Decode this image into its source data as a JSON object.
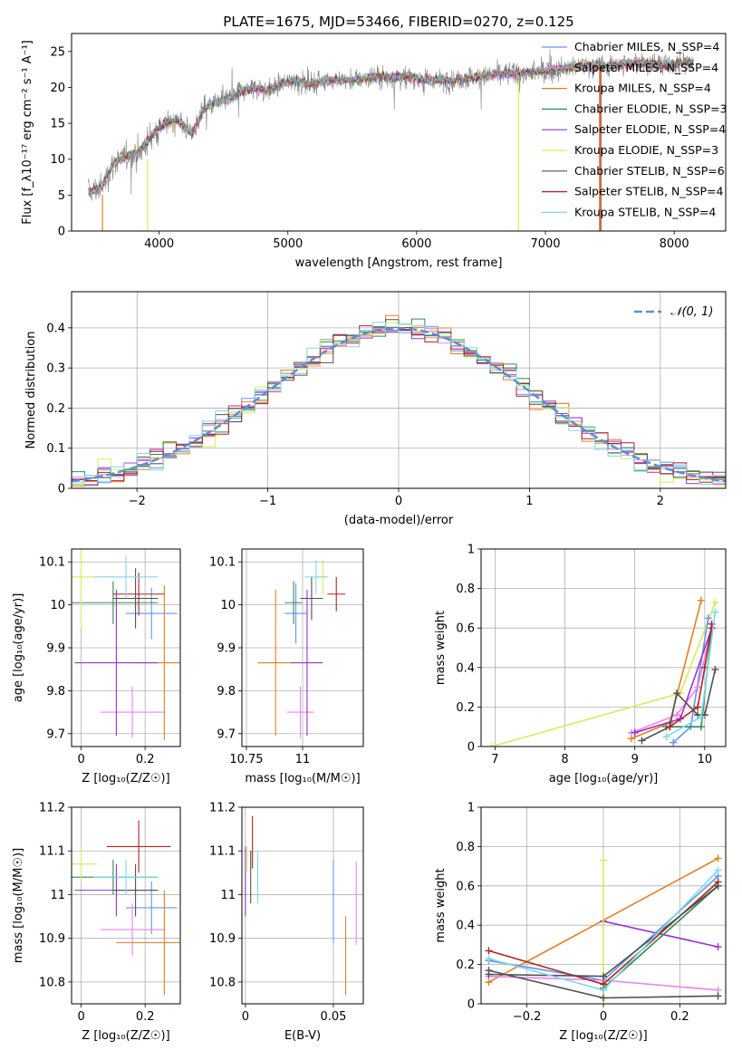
{
  "figure_title": "PLATE=1675, MJD=53466, FIBERID=0270, z=0.125",
  "colors": {
    "chabrier_miles": "#6495ed",
    "salpeter_miles": "#ee82ee",
    "kroupa_miles": "#e67e22",
    "chabrier_elodie": "#2e8b57",
    "salpeter_elodie": "#9932cc",
    "kroupa_elodie": "#d4ed5a",
    "chabrier_stelib": "#505050",
    "salpeter_stelib": "#b22222",
    "kroupa_stelib": "#80d8e8"
  },
  "chart_data": [
    {
      "id": "spectrum",
      "type": "line",
      "title": "PLATE=1675, MJD=53466, FIBERID=0270, z=0.125",
      "xlabel": "wavelength [Angstrom, rest frame]",
      "ylabel": "Flux [f_λ10⁻¹⁷ erg cm⁻² s⁻¹ A⁻¹]",
      "xlim": [
        3320,
        8400
      ],
      "ylim": [
        0,
        27.5
      ],
      "xticks": [
        4000,
        5000,
        6000,
        7000,
        8000
      ],
      "yticks": [
        0,
        5,
        10,
        15,
        20,
        25
      ],
      "legend_position": "upper right",
      "grid": false,
      "series": [
        {
          "name": "Chabrier MILES, N_SSP=4",
          "color_key": "chabrier_miles"
        },
        {
          "name": "Salpeter MILES, N_SSP=4",
          "color_key": "salpeter_miles"
        },
        {
          "name": "Kroupa MILES, N_SSP=4",
          "color_key": "kroupa_miles"
        },
        {
          "name": "Chabrier ELODIE, N_SSP=3",
          "color_key": "chabrier_elodie"
        },
        {
          "name": "Salpeter ELODIE, N_SSP=4",
          "color_key": "salpeter_elodie"
        },
        {
          "name": "Kroupa ELODIE, N_SSP=3",
          "color_key": "kroupa_elodie"
        },
        {
          "name": "Chabrier STELIB, N_SSP=6",
          "color_key": "chabrier_stelib"
        },
        {
          "name": "Salpeter STELIB, N_SSP=4",
          "color_key": "salpeter_stelib"
        },
        {
          "name": "Kroupa STELIB, N_SSP=4",
          "color_key": "kroupa_stelib"
        }
      ],
      "continuum_x": [
        3450,
        3550,
        3650,
        3750,
        3850,
        3950,
        4050,
        4150,
        4250,
        4350,
        4450,
        4550,
        4650,
        4750,
        4850,
        4950,
        5050,
        5150,
        5300,
        5500,
        5700,
        5900,
        6100,
        6300,
        6500,
        6700,
        6900,
        7100,
        7300,
        7500,
        7700,
        7900,
        8100
      ],
      "continuum_y": [
        5.5,
        6,
        9.5,
        10.5,
        11,
        13.5,
        15,
        15.5,
        13.5,
        17,
        18,
        18.5,
        19.5,
        20,
        19.5,
        20.5,
        21,
        20.5,
        21,
        21,
        21.5,
        21.5,
        21,
        21,
        21.5,
        22,
        22,
        22.5,
        23,
        23,
        23.5,
        23,
        23.5
      ],
      "drop_lines": [
        {
          "color_key": "kroupa_miles",
          "x": 3560,
          "from": 0,
          "to": 5
        },
        {
          "color_key": "kroupa_elodie",
          "x": 3910,
          "from": 0,
          "to": 10
        },
        {
          "color_key": "kroupa_elodie",
          "x": 6790,
          "from": 0,
          "to": 21
        },
        {
          "color_key": "kroupa_miles",
          "x": 7420,
          "from": 0,
          "to": 23
        },
        {
          "color_key": "salpeter_stelib",
          "x": 7430,
          "from": 0,
          "to": 23
        }
      ]
    },
    {
      "id": "residuals",
      "type": "step",
      "xlabel": "(data-model)/error",
      "ylabel": "Normed distribution",
      "xlim": [
        -2.5,
        2.5
      ],
      "ylim": [
        0,
        0.49
      ],
      "xticks": [
        -2,
        -1,
        0,
        1,
        2
      ],
      "yticks": [
        0.0,
        0.1,
        0.2,
        0.3,
        0.4
      ],
      "grid": true,
      "bin_width": 0.1,
      "reference_curve": {
        "name": "𝒩(0, 1)",
        "color": "#5b8fd6",
        "style": "dashed"
      },
      "legend_position": "upper right"
    },
    {
      "id": "age_vs_Z",
      "type": "errorbar",
      "xlabel": "Z [log₁₀(Z/Z☉)]",
      "ylabel": "age  [log₁₀(age/yr)]",
      "xlim": [
        -0.03,
        0.31
      ],
      "ylim": [
        9.67,
        10.13
      ],
      "xticks": [
        0.0,
        0.2
      ],
      "yticks": [
        9.7,
        9.8,
        9.9,
        10.0,
        10.1
      ],
      "grid": true,
      "points": [
        {
          "color_key": "chabrier_miles",
          "x": 0.22,
          "xerr": 0.08,
          "y": 9.98,
          "yerr": 0.06
        },
        {
          "color_key": "salpeter_miles",
          "x": 0.16,
          "xerr": 0.1,
          "y": 9.75,
          "yerr": 0.06
        },
        {
          "color_key": "kroupa_miles",
          "x": 0.26,
          "xerr": 0.1,
          "y": 9.865,
          "yerr": 0.18
        },
        {
          "color_key": "chabrier_elodie",
          "x": 0.1,
          "xerr": 0.14,
          "y": 10.005,
          "yerr": 0.05
        },
        {
          "color_key": "salpeter_elodie",
          "x": 0.11,
          "xerr": 0.13,
          "y": 9.865,
          "yerr": 0.17
        },
        {
          "color_key": "kroupa_elodie",
          "x": 0.0,
          "xerr": 0.05,
          "y": 10.065,
          "yerr": 0.12
        },
        {
          "color_key": "chabrier_stelib",
          "x": 0.17,
          "xerr": 0.07,
          "y": 10.015,
          "yerr": 0.07
        },
        {
          "color_key": "salpeter_stelib",
          "x": 0.18,
          "xerr": 0.08,
          "y": 10.025,
          "yerr": 0.05
        },
        {
          "color_key": "kroupa_stelib",
          "x": 0.14,
          "xerr": 0.1,
          "y": 10.065,
          "yerr": 0.05
        }
      ]
    },
    {
      "id": "age_vs_mass",
      "type": "errorbar",
      "xlabel": "mass [log₁₀(M/M☉)]",
      "ylabel": "",
      "xlim": [
        10.73,
        11.27
      ],
      "ylim": [
        9.67,
        10.13
      ],
      "xticks": [
        10.75,
        11.0
      ],
      "yticks": [
        9.7,
        9.8,
        9.9,
        10.0,
        10.1
      ],
      "grid": true,
      "points": [
        {
          "color_key": "chabrier_miles",
          "x": 10.97,
          "xerr": 0.05,
          "y": 9.98,
          "yerr": 0.07
        },
        {
          "color_key": "salpeter_miles",
          "x": 10.99,
          "xerr": 0.06,
          "y": 9.75,
          "yerr": 0.06
        },
        {
          "color_key": "kroupa_miles",
          "x": 10.88,
          "xerr": 0.08,
          "y": 9.865,
          "yerr": 0.17
        },
        {
          "color_key": "chabrier_elodie",
          "x": 10.96,
          "xerr": 0.04,
          "y": 10.005,
          "yerr": 0.05
        },
        {
          "color_key": "salpeter_elodie",
          "x": 11.02,
          "xerr": 0.07,
          "y": 9.865,
          "yerr": 0.17
        },
        {
          "color_key": "kroupa_elodie",
          "x": 11.09,
          "xerr": 0.02,
          "y": 10.065,
          "yerr": 0.04
        },
        {
          "color_key": "chabrier_stelib",
          "x": 11.04,
          "xerr": 0.05,
          "y": 10.015,
          "yerr": 0.05
        },
        {
          "color_key": "salpeter_stelib",
          "x": 11.15,
          "xerr": 0.04,
          "y": 10.025,
          "yerr": 0.04
        },
        {
          "color_key": "kroupa_stelib",
          "x": 11.06,
          "xerr": 0.05,
          "y": 10.065,
          "yerr": 0.04
        }
      ]
    },
    {
      "id": "weight_vs_age",
      "type": "line",
      "xlabel": "age  [log₁₀(age/yr)]",
      "ylabel": "mass weight",
      "xlim": [
        6.8,
        10.3
      ],
      "ylim": [
        0,
        1
      ],
      "xticks": [
        7,
        8,
        9,
        10
      ],
      "yticks": [
        0.0,
        0.2,
        0.4,
        0.6,
        0.8,
        1.0
      ],
      "grid": true,
      "series": [
        {
          "color_key": "kroupa_elodie",
          "x": [
            6.95,
            9.65,
            10.15
          ],
          "y": [
            0.0,
            0.27,
            0.73
          ]
        },
        {
          "color_key": "kroupa_miles",
          "x": [
            8.95,
            9.5,
            9.95
          ],
          "y": [
            0.04,
            0.12,
            0.74
          ]
        },
        {
          "color_key": "chabrier_miles",
          "x": [
            9.55,
            9.8,
            10.05
          ],
          "y": [
            0.02,
            0.1,
            0.65
          ]
        },
        {
          "color_key": "salpeter_miles",
          "x": [
            8.95,
            9.6,
            9.9,
            10.1
          ],
          "y": [
            0.07,
            0.16,
            0.3,
            0.6
          ]
        },
        {
          "color_key": "chabrier_elodie",
          "x": [
            9.45,
            9.95,
            10.1
          ],
          "y": [
            0.1,
            0.1,
            0.6
          ]
        },
        {
          "color_key": "salpeter_elodie",
          "x": [
            9.0,
            9.65,
            10.1
          ],
          "y": [
            0.07,
            0.14,
            0.6
          ]
        },
        {
          "color_key": "chabrier_stelib",
          "x": [
            9.1,
            9.5,
            9.6,
            9.9,
            10.0,
            10.15
          ],
          "y": [
            0.03,
            0.1,
            0.27,
            0.16,
            0.16,
            0.39
          ]
        },
        {
          "color_key": "salpeter_stelib",
          "x": [
            9.5,
            9.9,
            10.0,
            10.1
          ],
          "y": [
            0.1,
            0.2,
            0.4,
            0.62
          ]
        },
        {
          "color_key": "kroupa_stelib",
          "x": [
            9.45,
            9.95,
            10.15
          ],
          "y": [
            0.05,
            0.15,
            0.68
          ]
        }
      ]
    },
    {
      "id": "mass_vs_Z",
      "type": "errorbar",
      "xlabel": "Z [log₁₀(Z/Z☉)]",
      "ylabel": "mass [log₁₀(M/M☉)]",
      "xlim": [
        -0.03,
        0.31
      ],
      "ylim": [
        10.75,
        11.2
      ],
      "xticks": [
        0.0,
        0.2
      ],
      "yticks": [
        10.8,
        10.9,
        11.0,
        11.1,
        11.2
      ],
      "grid": true,
      "points": [
        {
          "color_key": "chabrier_miles",
          "x": 0.22,
          "xerr": 0.08,
          "y": 10.97,
          "yerr": 0.06
        },
        {
          "color_key": "salpeter_miles",
          "x": 0.16,
          "xerr": 0.1,
          "y": 10.92,
          "yerr": 0.06
        },
        {
          "color_key": "kroupa_miles",
          "x": 0.26,
          "xerr": 0.15,
          "y": 10.89,
          "yerr": 0.12
        },
        {
          "color_key": "chabrier_elodie",
          "x": 0.1,
          "xerr": 0.14,
          "y": 11.04,
          "yerr": 0.04
        },
        {
          "color_key": "salpeter_elodie",
          "x": 0.11,
          "xerr": 0.13,
          "y": 11.01,
          "yerr": 0.06
        },
        {
          "color_key": "kroupa_elodie",
          "x": 0.0,
          "xerr": 0.05,
          "y": 11.07,
          "yerr": 0.04
        },
        {
          "color_key": "chabrier_stelib",
          "x": 0.17,
          "xerr": 0.07,
          "y": 11.01,
          "yerr": 0.06
        },
        {
          "color_key": "salpeter_stelib",
          "x": 0.18,
          "xerr": 0.1,
          "y": 11.11,
          "yerr": 0.06
        },
        {
          "color_key": "kroupa_stelib",
          "x": 0.14,
          "xerr": 0.1,
          "y": 11.04,
          "yerr": 0.04
        }
      ]
    },
    {
      "id": "mass_vs_EBV",
      "type": "errorbar",
      "xlabel": "E(B-V)",
      "ylabel": "",
      "xlim": [
        -0.002,
        0.067
      ],
      "ylim": [
        10.75,
        11.2
      ],
      "xticks": [
        0.0,
        0.05
      ],
      "yticks": [
        10.8,
        10.9,
        11.0,
        11.1,
        11.2
      ],
      "grid": true,
      "points": [
        {
          "color_key": "chabrier_miles",
          "x": 0.05,
          "y": 10.985,
          "yerr": 0.095
        },
        {
          "color_key": "salpeter_miles",
          "x": 0.063,
          "y": 10.98,
          "yerr": 0.095
        },
        {
          "color_key": "kroupa_miles",
          "x": 0.057,
          "y": 10.86,
          "yerr": 0.09
        },
        {
          "color_key": "chabrier_elodie",
          "x": 0.007,
          "y": 11.04,
          "yerr": 0.03
        },
        {
          "color_key": "salpeter_elodie",
          "x": 0.0,
          "y": 11.03,
          "yerr": 0.08
        },
        {
          "color_key": "kroupa_elodie",
          "x": 0.001,
          "y": 11.08,
          "yerr": 0.03
        },
        {
          "color_key": "chabrier_stelib",
          "x": 0.003,
          "y": 11.04,
          "yerr": 0.06
        },
        {
          "color_key": "salpeter_stelib",
          "x": 0.004,
          "y": 11.12,
          "yerr": 0.06
        },
        {
          "color_key": "kroupa_stelib",
          "x": 0.007,
          "y": 11.04,
          "yerr": 0.06
        }
      ]
    },
    {
      "id": "weight_vs_Z",
      "type": "line",
      "xlabel": "Z [log₁₀(Z/Z☉)]",
      "ylabel": "mass weight",
      "xlim": [
        -0.32,
        0.32
      ],
      "ylim": [
        0,
        1
      ],
      "xticks": [
        -0.2,
        0.0,
        0.2
      ],
      "yticks": [
        0.0,
        0.2,
        0.4,
        0.6,
        0.8,
        1.0
      ],
      "grid": true,
      "series": [
        {
          "color_key": "kroupa_miles",
          "x": [
            -0.3,
            0.3
          ],
          "y": [
            0.11,
            0.74
          ]
        },
        {
          "color_key": "salpeter_elodie",
          "x": [
            0.0,
            0.3
          ],
          "y": [
            0.42,
            0.29
          ]
        },
        {
          "color_key": "kroupa_elodie",
          "x": [
            0.0,
            0.0
          ],
          "y": [
            0.0,
            0.73
          ]
        },
        {
          "color_key": "chabrier_miles",
          "x": [
            -0.3,
            0.0,
            0.3
          ],
          "y": [
            0.22,
            0.12,
            0.65
          ]
        },
        {
          "color_key": "salpeter_miles",
          "x": [
            -0.3,
            0.0,
            0.3
          ],
          "y": [
            0.14,
            0.12,
            0.07
          ]
        },
        {
          "color_key": "chabrier_elodie",
          "x": [
            0.0,
            0.3
          ],
          "y": [
            0.08,
            0.6
          ]
        },
        {
          "color_key": "salpeter_stelib",
          "x": [
            -0.3,
            0.0,
            0.3
          ],
          "y": [
            0.27,
            0.1,
            0.62
          ]
        },
        {
          "color_key": "chabrier_stelib",
          "x": [
            -0.3,
            0.0,
            0.3
          ],
          "y": [
            0.17,
            0.03,
            0.04
          ]
        },
        {
          "color_key": "chabrier_stelib",
          "x": [
            -0.3,
            0.0,
            0.3
          ],
          "y": [
            0.15,
            0.14,
            0.6
          ]
        },
        {
          "color_key": "kroupa_stelib",
          "x": [
            -0.3,
            0.0,
            0.3
          ],
          "y": [
            0.23,
            0.07,
            0.68
          ]
        }
      ]
    }
  ]
}
